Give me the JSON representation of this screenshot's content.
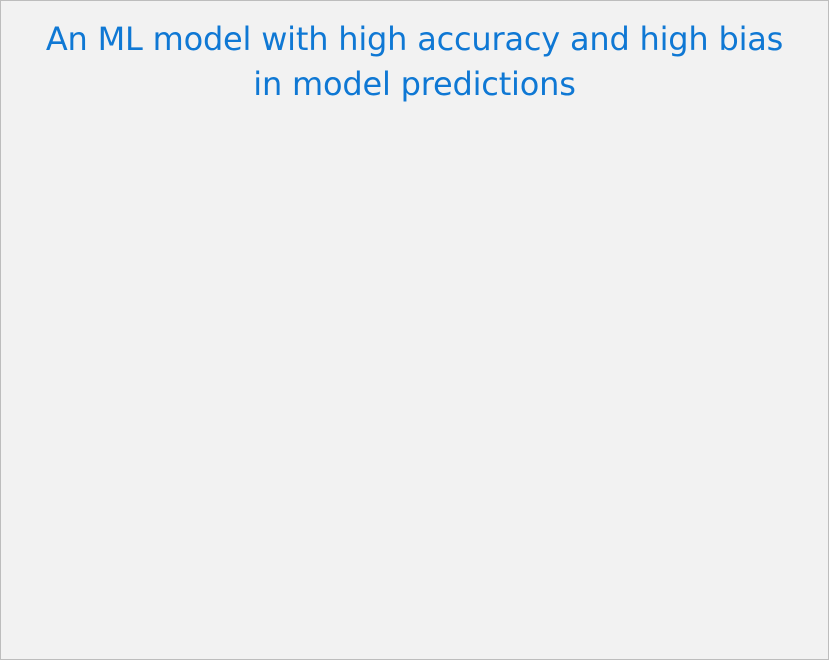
{
  "card": {
    "title": "An ML model with high accuracy and high bias in model predictions",
    "title_color": "#0f78d4",
    "background_color": "#f2f2f2"
  }
}
